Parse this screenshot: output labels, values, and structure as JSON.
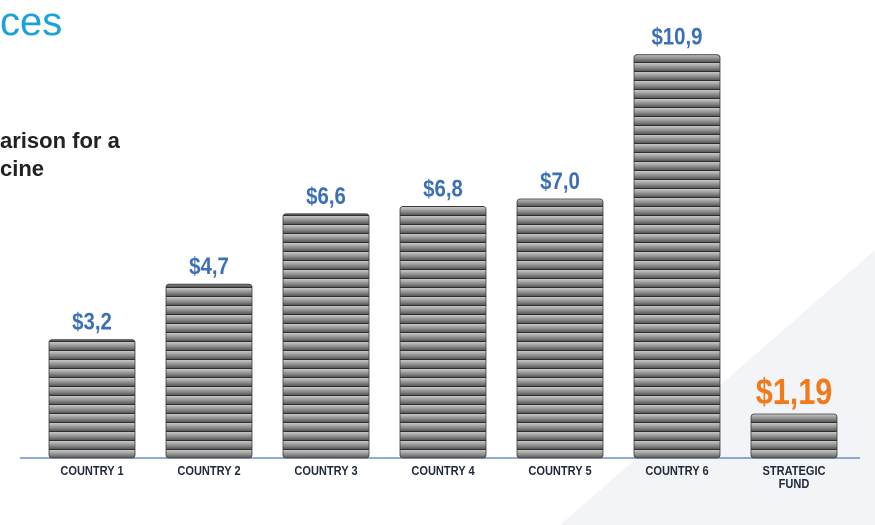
{
  "chart_data": {
    "type": "bar",
    "title": "ces",
    "subtitle": [
      "arison for a",
      "cine"
    ],
    "categories": [
      "COUNTRY 1",
      "COUNTRY 2",
      "COUNTRY 3",
      "COUNTRY 4",
      "COUNTRY 5",
      "COUNTRY 6",
      "STRATEGIC FUND"
    ],
    "values": [
      3.2,
      4.7,
      6.6,
      6.8,
      7.0,
      10.9,
      1.19
    ],
    "value_labels": [
      "$3,2",
      "$4,7",
      "$6,6",
      "$6,8",
      "$7,0",
      "$10,9",
      "$1,19"
    ],
    "label_colors": [
      "#3b6fb6",
      "#3b6fb6",
      "#3b6fb6",
      "#3b6fb6",
      "#3b6fb6",
      "#3b6fb6",
      "#f07b1c"
    ],
    "color": "#8a8a8a"
  }
}
